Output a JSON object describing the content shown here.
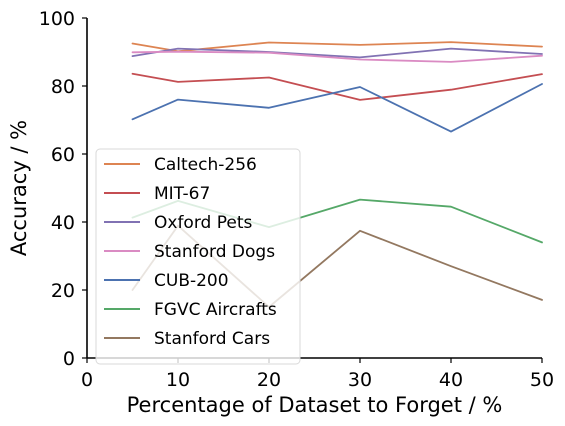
{
  "chart_data": {
    "type": "line",
    "title": "",
    "xlabel": "Percentage of Dataset to Forget / %",
    "ylabel": "Accuracy / %",
    "xlim": [
      0,
      50
    ],
    "ylim": [
      0,
      100
    ],
    "x_ticks": [
      0,
      10,
      20,
      30,
      40,
      50
    ],
    "y_ticks": [
      0,
      20,
      40,
      60,
      80,
      100
    ],
    "x": [
      5,
      10,
      20,
      30,
      40,
      50
    ],
    "grid": false,
    "legend_position": "center-left",
    "series": [
      {
        "name": "Caltech-256",
        "color": "#dd8452",
        "values": [
          92.5,
          90.2,
          92.8,
          92.1,
          92.9,
          91.6
        ]
      },
      {
        "name": "MIT-67",
        "color": "#c44e52",
        "values": [
          83.6,
          81.2,
          82.5,
          75.9,
          78.9,
          83.5
        ]
      },
      {
        "name": "Oxford Pets",
        "color": "#8172b3",
        "values": [
          88.8,
          91.0,
          90.0,
          88.4,
          91.0,
          89.4
        ]
      },
      {
        "name": "Stanford Dogs",
        "color": "#da8bc3",
        "values": [
          89.9,
          90.1,
          89.8,
          87.8,
          87.1,
          88.9
        ]
      },
      {
        "name": "CUB-200",
        "color": "#4c72b0",
        "values": [
          70.2,
          76.0,
          73.6,
          79.7,
          66.6,
          80.6
        ]
      },
      {
        "name": "FGVC Aircrafts",
        "color": "#55a868",
        "values": [
          41.3,
          46.2,
          38.5,
          46.6,
          44.5,
          34.0
        ]
      },
      {
        "name": "Stanford Cars",
        "color": "#937860",
        "values": [
          20.0,
          38.9,
          15.0,
          37.4,
          27.0,
          17.1
        ]
      }
    ]
  }
}
